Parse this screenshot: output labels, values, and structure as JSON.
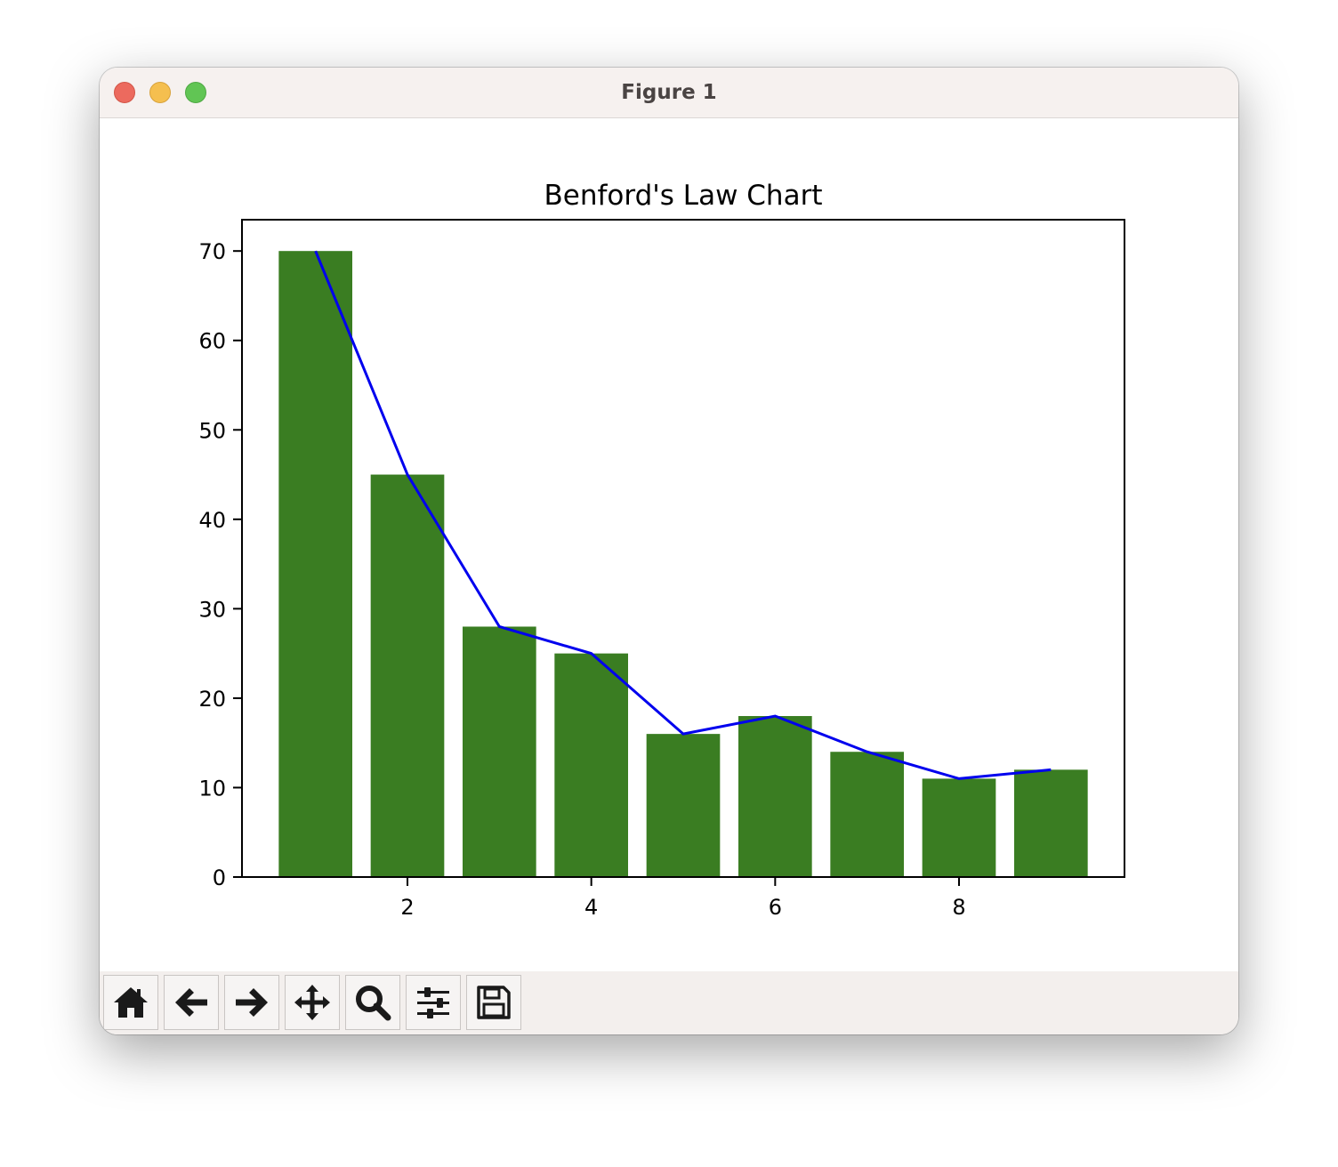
{
  "window": {
    "title": "Figure 1"
  },
  "toolbar": {
    "buttons": [
      {
        "name": "home-button",
        "icon": "home-icon"
      },
      {
        "name": "back-button",
        "icon": "arrow-left-icon"
      },
      {
        "name": "forward-button",
        "icon": "arrow-right-icon"
      },
      {
        "name": "pan-button",
        "icon": "move-icon"
      },
      {
        "name": "zoom-button",
        "icon": "magnifier-icon"
      },
      {
        "name": "configure-subplots-button",
        "icon": "sliders-icon"
      },
      {
        "name": "save-button",
        "icon": "floppy-disk-icon"
      }
    ]
  },
  "chart_data": {
    "type": "bar",
    "title": "Benford's Law Chart",
    "xlabel": "",
    "ylabel": "",
    "x": [
      1,
      2,
      3,
      4,
      5,
      6,
      7,
      8,
      9
    ],
    "series": [
      {
        "type": "bar",
        "values": [
          70,
          45,
          28,
          25,
          16,
          18,
          14,
          11,
          12
        ],
        "color": "#3a7d22"
      },
      {
        "type": "line",
        "values": [
          70,
          45,
          28,
          25,
          16,
          18,
          14,
          11,
          12
        ],
        "color": "#0000ee"
      }
    ],
    "xlim": [
      0.2,
      9.8
    ],
    "ylim": [
      0,
      73.5
    ],
    "xticks": [
      2,
      4,
      6,
      8
    ],
    "yticks": [
      0,
      10,
      20,
      30,
      40,
      50,
      60,
      70
    ],
    "grid": false,
    "legend": "none"
  }
}
